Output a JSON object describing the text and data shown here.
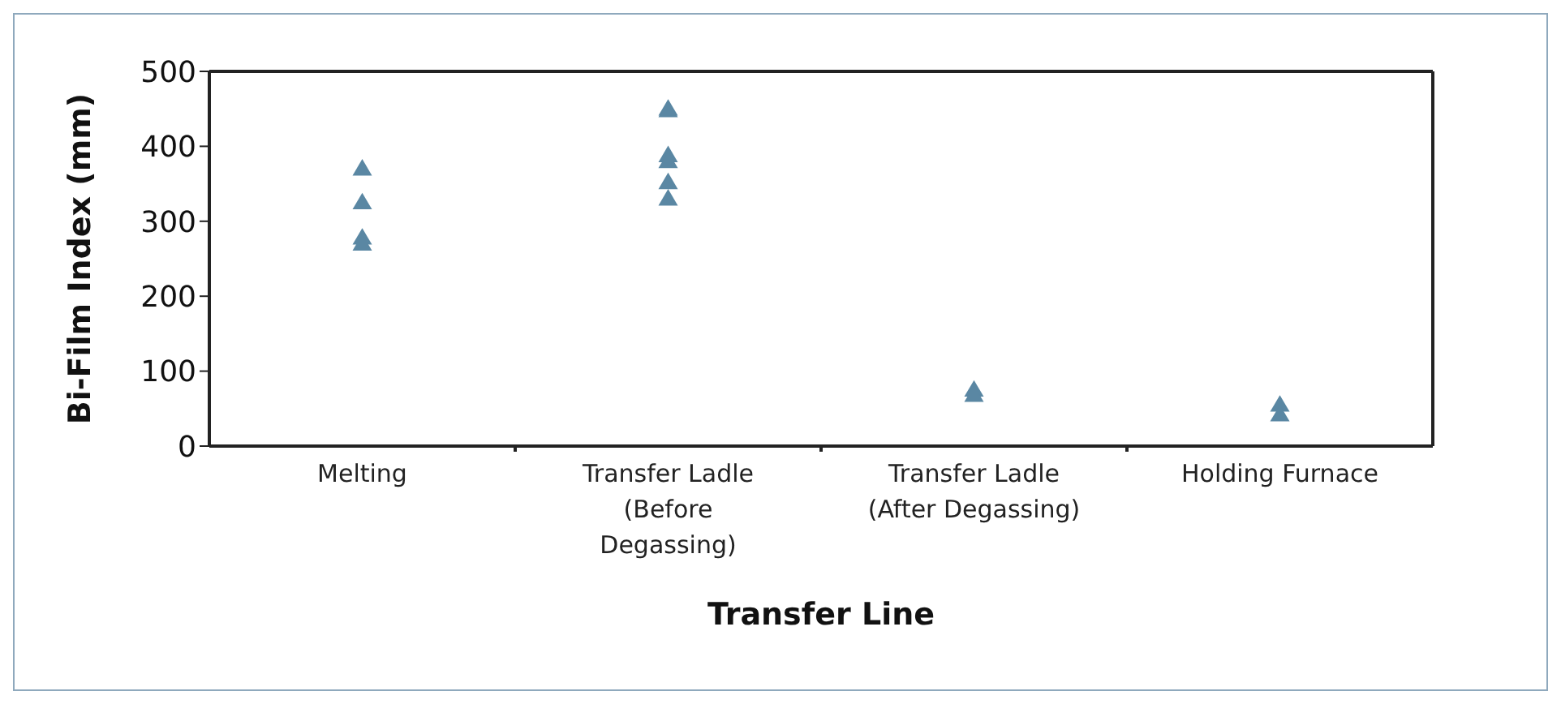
{
  "chart_data": {
    "type": "scatter",
    "xlabel": "Transfer Line",
    "ylabel": "Bi-Film Index (mm)",
    "categories": [
      "Melting",
      "Transfer Ladle (Before Degassing)",
      "Transfer Ladle (After Degassing)",
      "Holding Furnace"
    ],
    "series": [
      {
        "color": "#5a87a3",
        "x": [
          "Melting",
          "Melting",
          "Melting",
          "Melting",
          "Melting",
          "Transfer Ladle (Before Degassing)",
          "Transfer Ladle (Before Degassing)",
          "Transfer Ladle (Before Degassing)",
          "Transfer Ladle (Before Degassing)",
          "Transfer Ladle (Before Degassing)",
          "Transfer Ladle (Before Degassing)",
          "Transfer Ladle (After Degassing)",
          "Transfer Ladle (After Degassing)",
          "Transfer Ladle (After Degassing)",
          "Holding Furnace",
          "Holding Furnace",
          "Holding Furnace"
        ],
        "values": [
          370,
          null,
          325,
          278,
          270,
          450,
          448,
          388,
          380,
          352,
          330,
          75,
          68,
          null,
          55,
          null,
          42
        ]
      }
    ],
    "ylim": [
      0,
      500
    ],
    "yticks": [
      0,
      100,
      200,
      300,
      400,
      500
    ],
    "grid": false,
    "legend": false,
    "marker": "triangle"
  }
}
